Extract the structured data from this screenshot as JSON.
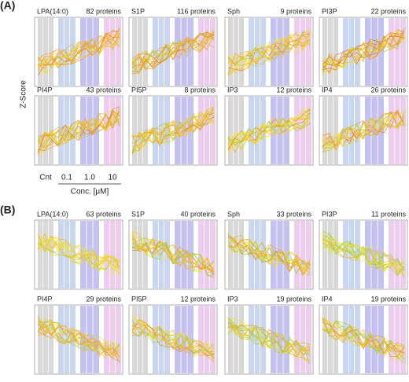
{
  "panels": [
    {
      "label": "(A)",
      "y_label": "Z-Score",
      "plots": [
        {
          "name": "LPA(14:0)",
          "count": "82 proteins"
        },
        {
          "name": "S1P",
          "count": "116 proteins"
        },
        {
          "name": "Sph",
          "count": "9 proteins"
        },
        {
          "name": "PI3P",
          "count": "22 proteins"
        },
        {
          "name": "PI4P",
          "count": "43 proteins"
        },
        {
          "name": "PI5P",
          "count": "8 proteins"
        },
        {
          "name": "IP3",
          "count": "12 proteins"
        },
        {
          "name": "IP4",
          "count": "26 proteins"
        }
      ]
    },
    {
      "label": "(B)",
      "plots": [
        {
          "name": "LPA(14:0)",
          "count": "63 proteins"
        },
        {
          "name": "S1P",
          "count": "40 proteins"
        },
        {
          "name": "Sph",
          "count": "33 proteins"
        },
        {
          "name": "PI3P",
          "count": "11 proteins"
        },
        {
          "name": "PI4P",
          "count": "29 proteins"
        },
        {
          "name": "PI5P",
          "count": "12 proteins"
        },
        {
          "name": "IP3",
          "count": "19 proteins"
        },
        {
          "name": "IP4",
          "count": "19 proteins"
        }
      ]
    }
  ],
  "x_axis": {
    "ticks": [
      "Cnt",
      "0.1",
      "1.0",
      "10"
    ],
    "label": "Conc. [μM]"
  }
}
